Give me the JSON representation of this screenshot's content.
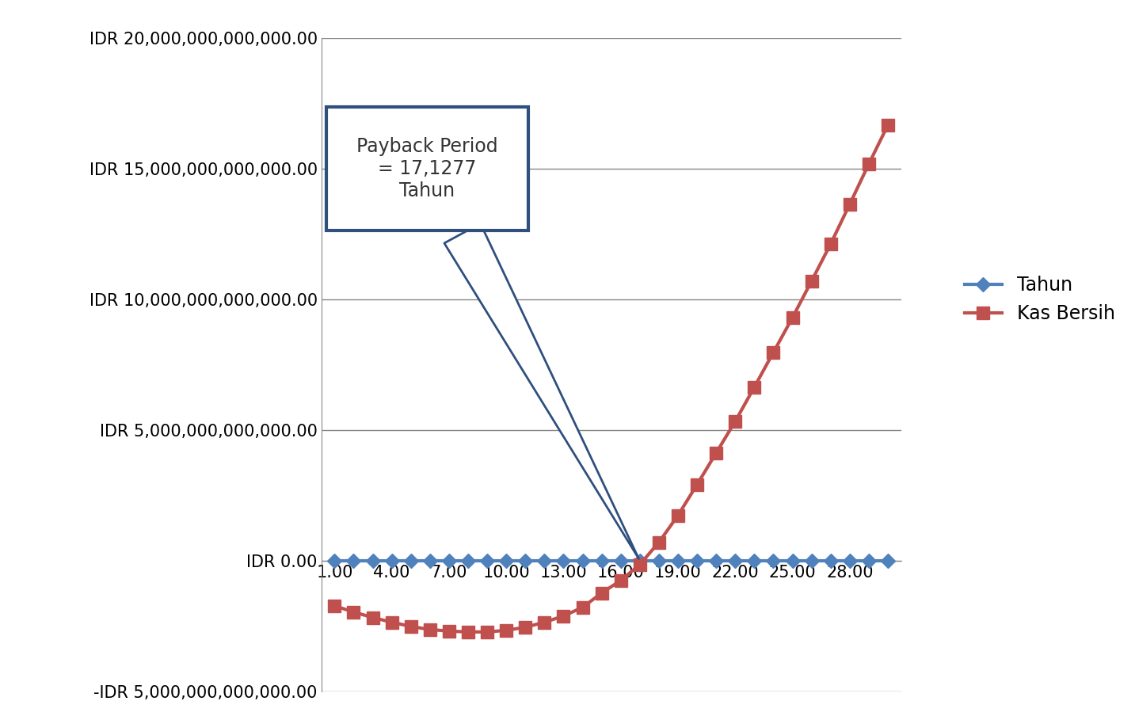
{
  "chart_data": {
    "type": "line",
    "categories": [
      "1.00",
      null,
      null,
      "4.00",
      null,
      null,
      "7.00",
      null,
      null,
      "10.00",
      null,
      null,
      "13.00",
      null,
      null,
      "16.00",
      null,
      null,
      "19.00",
      null,
      null,
      "22.00",
      null,
      null,
      "25.00",
      null,
      null,
      "28.00",
      null,
      null
    ],
    "series": [
      {
        "name": "Tahun",
        "color": "#4F81BD",
        "marker": "diamond",
        "values": [
          0,
          0,
          0,
          0,
          0,
          0,
          0,
          0,
          0,
          0,
          0,
          0,
          0,
          0,
          0,
          0,
          0,
          0,
          0,
          0,
          0,
          0,
          0,
          0,
          0,
          0,
          0,
          0,
          0,
          0
        ]
      },
      {
        "name": "Kas Bersih",
        "color": "#C0504D",
        "marker": "square",
        "values": [
          -1730000000000,
          -1970000000000,
          -2180000000000,
          -2360000000000,
          -2520000000000,
          -2640000000000,
          -2700000000000,
          -2730000000000,
          -2730000000000,
          -2670000000000,
          -2550000000000,
          -2360000000000,
          -2120000000000,
          -1790000000000,
          -1240000000000,
          -760000000000,
          -150000000000,
          700000000000,
          1730000000000,
          2910000000000,
          4120000000000,
          5330000000000,
          6640000000000,
          7970000000000,
          9300000000000,
          10700000000000,
          12120000000000,
          13640000000000,
          15180000000000,
          16670000000000
        ]
      }
    ],
    "ylim": [
      -5000000000000,
      20000000000000
    ],
    "yticks": [
      {
        "value": -5000000000000,
        "label": "-IDR 5,000,000,000,000.00"
      },
      {
        "value": 0,
        "label": "IDR 0.00"
      },
      {
        "value": 5000000000000,
        "label": "IDR 5,000,000,000,000.00"
      },
      {
        "value": 10000000000000,
        "label": "IDR 10,000,000,000,000.00"
      },
      {
        "value": 15000000000000,
        "label": "IDR 15,000,000,000,000.00"
      },
      {
        "value": 20000000000000,
        "label": "IDR 20,000,000,000,000.00"
      }
    ],
    "annotations": [
      {
        "text": "Payback Period\n= 17,1277\nTahun",
        "category_index": 16,
        "value": 0
      }
    ],
    "grid": true,
    "legend": "right"
  }
}
